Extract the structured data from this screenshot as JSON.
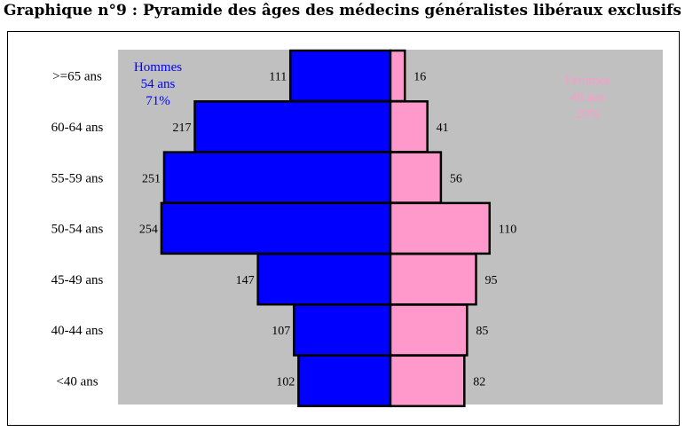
{
  "title": "Graphique n°9 : Pyramide des âges des médecins généralistes libéraux exclusifs",
  "chart_data": {
    "type": "bar",
    "orientation": "horizontal-pyramid",
    "categories": [
      ">=65 ans",
      "60-64 ans",
      "55-59 ans",
      "50-54 ans",
      "45-49 ans",
      "40-44 ans",
      "<40 ans"
    ],
    "series": [
      {
        "name": "Hommes",
        "values": [
          111,
          217,
          251,
          254,
          147,
          107,
          102
        ],
        "color": "#0000ff",
        "side": "left",
        "legend": [
          "Hommes",
          "54 ans",
          "71%"
        ]
      },
      {
        "name": "Femmes",
        "values": [
          16,
          41,
          56,
          110,
          95,
          85,
          82
        ],
        "color": "#ff99cc",
        "side": "right",
        "legend": [
          "Femmes",
          "48 ans",
          "29%"
        ]
      }
    ],
    "plot_background": "#c0c0c0",
    "bar_border": "#000000",
    "grid": false
  }
}
